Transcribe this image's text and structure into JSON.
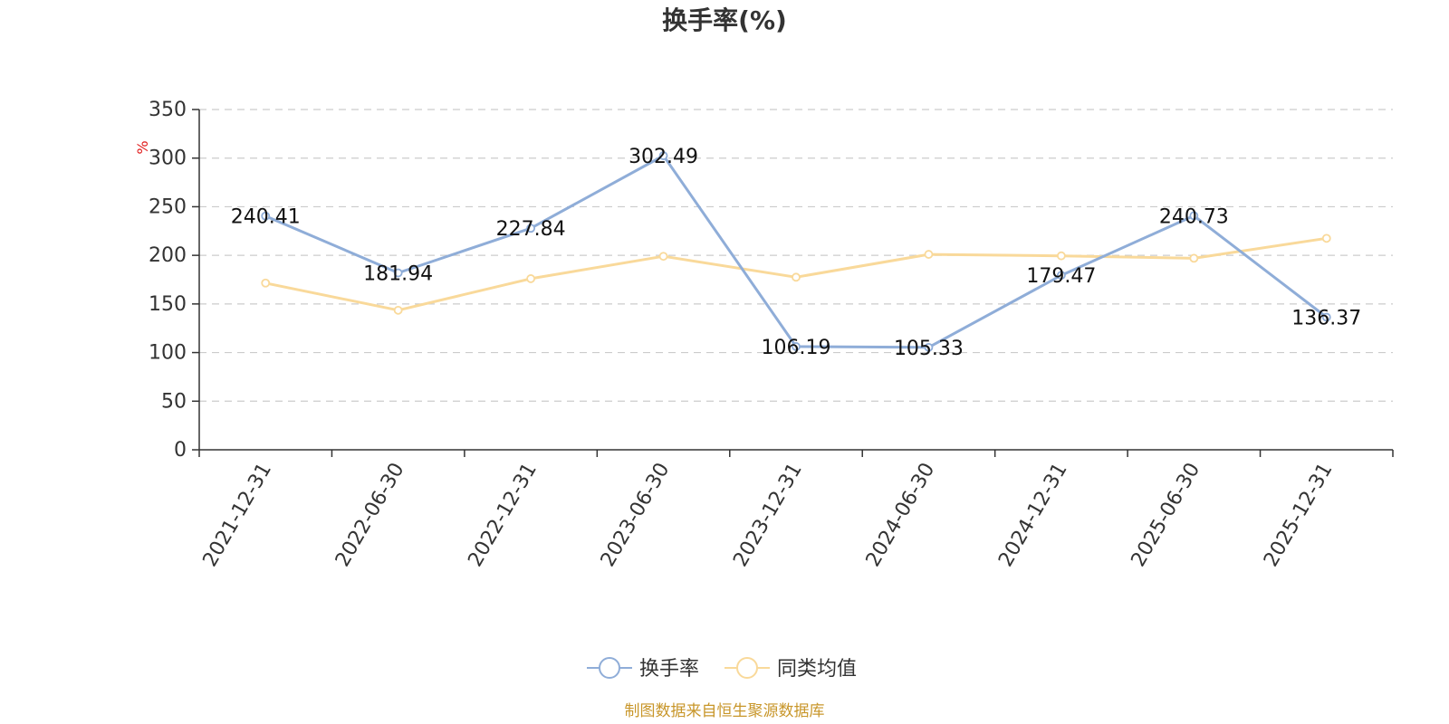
{
  "chart_data": {
    "type": "line",
    "title": "换手率(%)",
    "y_unit": "%",
    "categories": [
      "2021-12-31",
      "2022-06-30",
      "2022-12-31",
      "2023-06-30",
      "2023-12-31",
      "2024-06-30",
      "2024-12-31",
      "2025-06-30",
      "2025-12-31"
    ],
    "ylim": [
      0,
      350
    ],
    "yticks": [
      0,
      50,
      100,
      150,
      200,
      250,
      300,
      350
    ],
    "grid": true,
    "legend_position": "bottom-center",
    "series": [
      {
        "name": "换手率",
        "color": "#8fadd8",
        "values": [
          240.41,
          181.94,
          227.84,
          302.49,
          106.19,
          105.33,
          179.47,
          240.73,
          136.37
        ],
        "labels": [
          "240.41",
          "181.94",
          "227.84",
          "302.49",
          "106.19",
          "105.33",
          "179.47",
          "240.73",
          "136.37"
        ]
      },
      {
        "name": "同类均值",
        "color": "#f9d99a",
        "values": [
          171.5,
          143.5,
          176.0,
          199.0,
          177.5,
          201.0,
          199.5,
          197.0,
          217.5
        ]
      }
    ],
    "source_note": "制图数据来自恒生聚源数据库"
  }
}
